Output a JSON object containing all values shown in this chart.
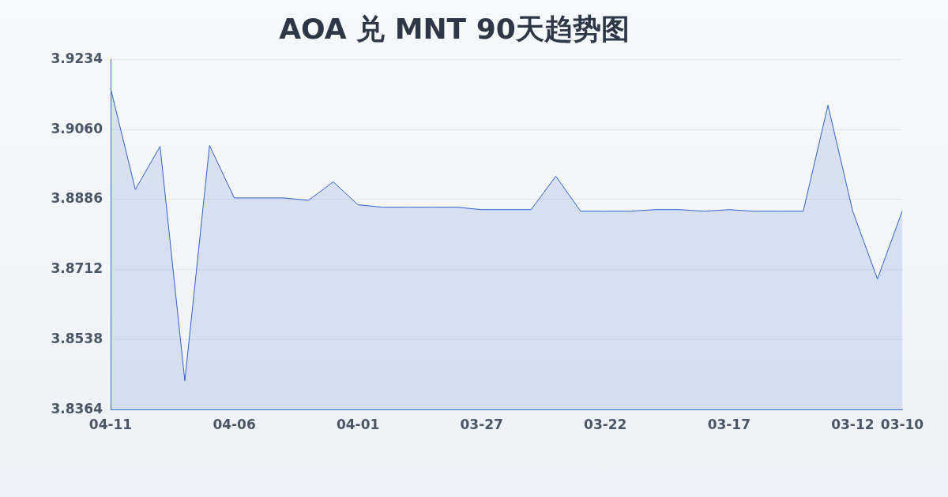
{
  "chart_data": {
    "type": "area",
    "title": "AOA 兑 MNT 90天趋势图",
    "categories": [
      "04-11",
      null,
      null,
      null,
      null,
      "04-06",
      null,
      null,
      null,
      null,
      "04-01",
      null,
      null,
      null,
      null,
      "03-27",
      null,
      null,
      null,
      null,
      "03-22",
      null,
      null,
      null,
      null,
      "03-17",
      null,
      null,
      null,
      null,
      "03-12",
      null,
      "03-10"
    ],
    "series": [
      {
        "color": "#2f62d0",
        "values": [
          3.9162,
          3.8911,
          3.9018,
          3.8436,
          3.902,
          3.889,
          3.889,
          3.889,
          3.8884,
          3.893,
          3.8873,
          3.8867,
          3.8867,
          3.8867,
          3.8867,
          3.8861,
          3.8861,
          3.8861,
          3.8944,
          3.8857,
          3.8857,
          3.8857,
          3.8861,
          3.8861,
          3.8857,
          3.8861,
          3.8857,
          3.8857,
          3.8857,
          3.912,
          3.8857,
          3.8689,
          3.8857
        ]
      }
    ],
    "ylim": [
      3.8364,
      3.9234
    ],
    "yticks": [
      3.8364,
      3.8538,
      3.8712,
      3.8886,
      {
        "value": 3.906,
        "label": "3.9060"
      },
      3.9234
    ],
    "grid": "y",
    "legend": false,
    "marker": "none",
    "line_style": "solid"
  }
}
